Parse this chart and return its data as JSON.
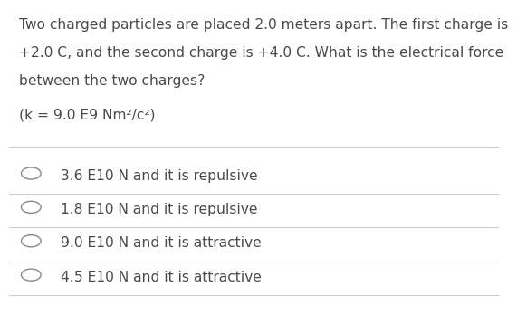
{
  "question_line1": "Two charged particles are placed 2.0 meters apart. The first charge is",
  "question_line2": "+2.0 C, and the second charge is +4.0 C. What is the electrical force",
  "question_line3": "between the two charges?",
  "constant": "(k = 9.0 E9 Nm²/c²)",
  "options": [
    "3.6 E10 N and it is repulsive",
    "1.8 E10 N and it is repulsive",
    "9.0 E10 N and it is attractive",
    "4.5 E10 N and it is attractive"
  ],
  "bg_color": "#ffffff",
  "text_color": "#4a4a4a",
  "line_color": "#cccccc",
  "circle_color": "#888888",
  "font_size_question": 11.2,
  "font_size_constant": 11.2,
  "font_size_options": 11.2
}
